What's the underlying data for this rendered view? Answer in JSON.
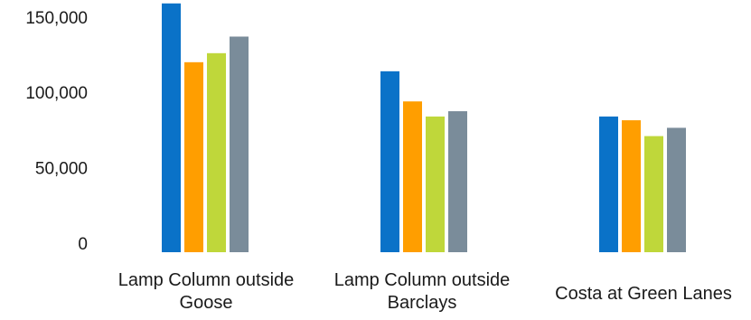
{
  "chart_data": {
    "type": "bar",
    "categories": [
      "Lamp Column outside Goose",
      "Lamp Column outside Barclays",
      "Costa at Green Lanes"
    ],
    "category_labels": [
      [
        "Lamp Column outside",
        "Goose"
      ],
      [
        "Lamp Column outside",
        "Barclays"
      ],
      [
        "Costa at Green Lanes"
      ]
    ],
    "series": [
      {
        "color": "#0A72C8",
        "values": [
          165000,
          120000,
          90000
        ]
      },
      {
        "color": "#FF9E00",
        "values": [
          126000,
          100000,
          87500
        ]
      },
      {
        "color": "#BFD73A",
        "values": [
          132000,
          90000,
          77000
        ]
      },
      {
        "color": "#7A8C9A",
        "values": [
          143000,
          93500,
          82500
        ]
      }
    ],
    "y_ticks": [
      "0",
      "50,000",
      "100,000",
      "150,000"
    ],
    "y_tick_values": [
      0,
      50000,
      100000,
      150000
    ],
    "ylim": [
      0,
      165000
    ],
    "title": "",
    "xlabel": "",
    "ylabel": "",
    "grid": false,
    "legend": "none"
  }
}
